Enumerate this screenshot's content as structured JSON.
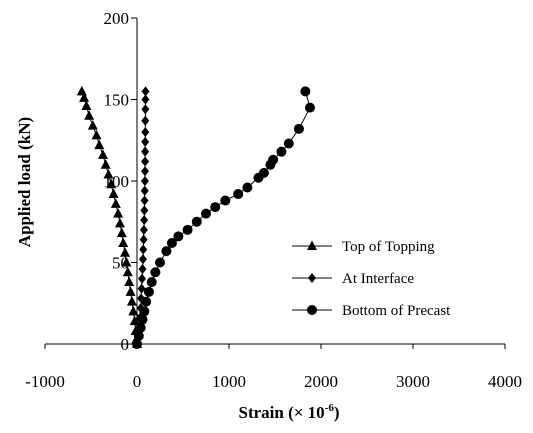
{
  "chart_data": {
    "type": "scatter",
    "xlabel": "Strain (× 10",
    "xlabel_sup": "-6",
    "xlabel_end": ")",
    "ylabel": "Applied load (kN)",
    "xlim": [
      -1000,
      4000
    ],
    "ylim": [
      0,
      200
    ],
    "x_ticks": [
      "-1000",
      "0",
      "1000",
      "2000",
      "3000",
      "4000"
    ],
    "y_ticks": [
      "0",
      "50",
      "100",
      "150",
      "200"
    ],
    "grid": false,
    "legend_position": "right",
    "series": [
      {
        "name": "Top of Topping",
        "marker": "triangle",
        "points": [
          [
            0,
            0
          ],
          [
            -5,
            3
          ],
          [
            -15,
            8
          ],
          [
            -25,
            14
          ],
          [
            -40,
            20
          ],
          [
            -55,
            26
          ],
          [
            -70,
            32
          ],
          [
            -85,
            38
          ],
          [
            -100,
            44
          ],
          [
            -115,
            50
          ],
          [
            -130,
            56
          ],
          [
            -150,
            62
          ],
          [
            -165,
            68
          ],
          [
            -185,
            74
          ],
          [
            -205,
            80
          ],
          [
            -230,
            86
          ],
          [
            -255,
            92
          ],
          [
            -280,
            98
          ],
          [
            -310,
            104
          ],
          [
            -340,
            110
          ],
          [
            -370,
            116
          ],
          [
            -410,
            122
          ],
          [
            -440,
            128
          ],
          [
            -480,
            134
          ],
          [
            -520,
            140
          ],
          [
            -550,
            146
          ],
          [
            -575,
            151
          ],
          [
            -600,
            155
          ]
        ]
      },
      {
        "name": "At Interface",
        "marker": "diamond",
        "points": [
          [
            0,
            0
          ],
          [
            10,
            5
          ],
          [
            20,
            10
          ],
          [
            30,
            16
          ],
          [
            40,
            22
          ],
          [
            45,
            28
          ],
          [
            50,
            34
          ],
          [
            55,
            40
          ],
          [
            60,
            46
          ],
          [
            65,
            52
          ],
          [
            68,
            58
          ],
          [
            72,
            64
          ],
          [
            75,
            70
          ],
          [
            78,
            76
          ],
          [
            80,
            82
          ],
          [
            82,
            88
          ],
          [
            84,
            94
          ],
          [
            86,
            100
          ],
          [
            87,
            106
          ],
          [
            88,
            112
          ],
          [
            88,
            118
          ],
          [
            89,
            124
          ],
          [
            90,
            130
          ],
          [
            90,
            137
          ],
          [
            91,
            144
          ],
          [
            92,
            150
          ],
          [
            93,
            155
          ]
        ]
      },
      {
        "name": "Bottom of Precast",
        "marker": "circle",
        "points": [
          [
            0,
            0
          ],
          [
            20,
            5
          ],
          [
            40,
            10
          ],
          [
            60,
            15
          ],
          [
            80,
            20
          ],
          [
            100,
            26
          ],
          [
            130,
            32
          ],
          [
            160,
            38
          ],
          [
            200,
            44
          ],
          [
            250,
            50
          ],
          [
            320,
            57
          ],
          [
            380,
            62
          ],
          [
            450,
            66
          ],
          [
            550,
            70
          ],
          [
            650,
            75
          ],
          [
            750,
            80
          ],
          [
            850,
            84
          ],
          [
            960,
            88
          ],
          [
            1100,
            92
          ],
          [
            1200,
            96
          ],
          [
            1320,
            102
          ],
          [
            1380,
            105
          ],
          [
            1450,
            110
          ],
          [
            1480,
            113
          ],
          [
            1570,
            118
          ],
          [
            1650,
            123
          ],
          [
            1760,
            132
          ],
          [
            1880,
            145
          ],
          [
            1830,
            155
          ]
        ]
      }
    ]
  }
}
